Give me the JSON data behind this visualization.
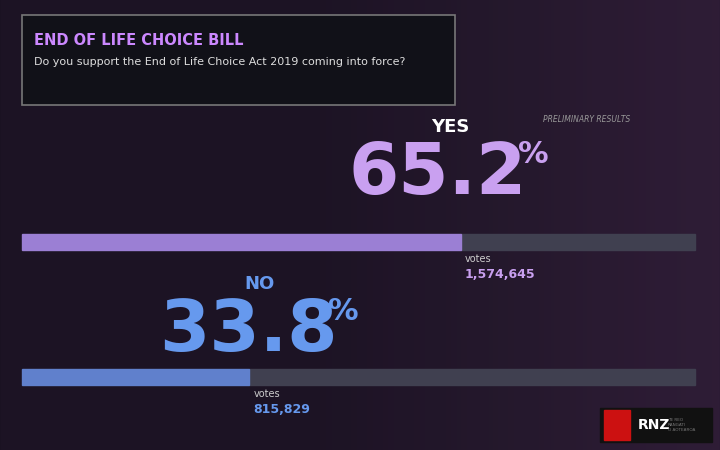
{
  "title_bold": "END OF LIFE CHOICE BILL",
  "title_sub": "Do you support the End of Life Choice Act 2019 coming into force?",
  "preliminary_label": "PRELIMINARY RESULTS",
  "yes_label": "YES",
  "yes_pct": "65.2",
  "yes_pct_symbol": "%",
  "yes_votes_label": "votes",
  "yes_votes": "1,574,645",
  "yes_value": 65.2,
  "no_label": "NO",
  "no_pct": "33.8",
  "no_pct_symbol": "%",
  "no_votes_label": "votes",
  "no_votes": "815,829",
  "no_value": 33.8,
  "background_color": "#080810",
  "bar_bg_color": "#404050",
  "yes_bar_color": "#9b7fd4",
  "no_bar_color": "#6080cc",
  "yes_text_color": "#c9a0f0",
  "no_text_color": "#6699ee",
  "yes_label_color": "#ffffff",
  "no_label_color": "#6699ee",
  "preliminary_color": "#999999",
  "votes_label_color": "#cccccc",
  "yes_votes_color": "#c9a0f0",
  "no_votes_color": "#6699ee",
  "box_border_color": "#777777",
  "box_bg_color": "#111118",
  "title_color": "#cc88ff",
  "subtitle_color": "#dddddd"
}
